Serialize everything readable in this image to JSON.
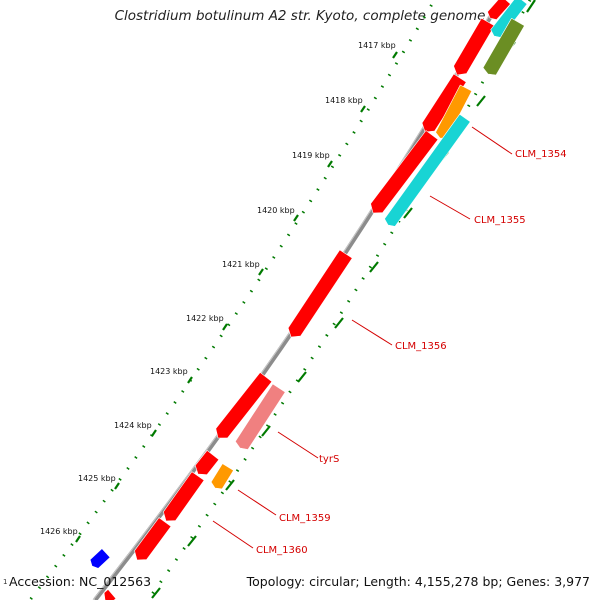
{
  "title": "Clostridium botulinum A2 str. Kyoto, complete genome",
  "footer": {
    "accession": "Accession: NC_012563",
    "summary": "Topology: circular; Length: 4,155,278 bp; Genes: 3,977",
    "edge_tick": "1"
  },
  "ticks": [
    "1417 kbp",
    "1418 kbp",
    "1419 kbp",
    "1420 kbp",
    "1421 kbp",
    "1422 kbp",
    "1423 kbp",
    "1424 kbp",
    "1425 kbp",
    "1426 kbp"
  ],
  "gene_labels": [
    "CLM_1354",
    "CLM_1355",
    "CLM_1356",
    "tyrS",
    "CLM_1359",
    "CLM_1360"
  ],
  "colors": {
    "cds": "#ff0000",
    "cds_dark": "#c80000",
    "cyan": "#18d4d4",
    "olive": "#6b8e23",
    "orange": "#ff9900",
    "pink": "#f08080",
    "blue": "#0000ff",
    "backbone": "#999999",
    "tick_green": "#007a00",
    "label_red": "#d40000"
  }
}
